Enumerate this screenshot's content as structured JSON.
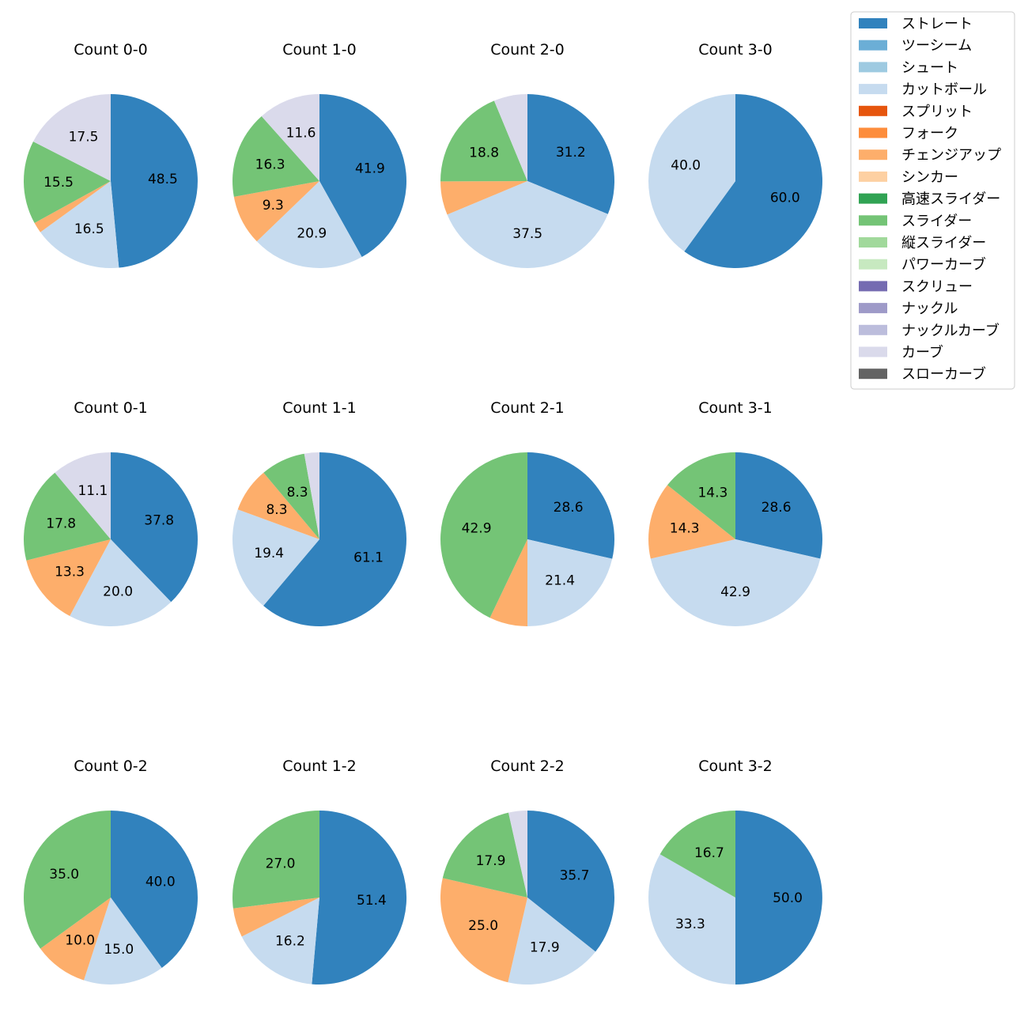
{
  "chart_data": {
    "type": "pie",
    "title": "",
    "legend_position": "top-right",
    "pitch_types": [
      {
        "name": "ストレート",
        "color": "#3182bd"
      },
      {
        "name": "ツーシーム",
        "color": "#6baed6"
      },
      {
        "name": "シュート",
        "color": "#9ecae1"
      },
      {
        "name": "カットボール",
        "color": "#c6dbef"
      },
      {
        "name": "スプリット",
        "color": "#e6550d"
      },
      {
        "name": "フォーク",
        "color": "#fd8d3c"
      },
      {
        "name": "チェンジアップ",
        "color": "#fdae6b"
      },
      {
        "name": "シンカー",
        "color": "#fdd0a2"
      },
      {
        "name": "高速スライダー",
        "color": "#31a354"
      },
      {
        "name": "スライダー",
        "color": "#74c476"
      },
      {
        "name": "縦スライダー",
        "color": "#a1d99b"
      },
      {
        "name": "パワーカーブ",
        "color": "#c7e9c0"
      },
      {
        "name": "スクリュー",
        "color": "#756bb1"
      },
      {
        "name": "ナックル",
        "color": "#9e9ac8"
      },
      {
        "name": "ナックルカーブ",
        "color": "#bcbddc"
      },
      {
        "name": "カーブ",
        "color": "#dadaeb"
      },
      {
        "name": "スローカーブ",
        "color": "#636363"
      }
    ],
    "charts": [
      {
        "title": "Count 0-0",
        "slices": [
          {
            "pitch": "ストレート",
            "value": 48.5,
            "label": "48.5"
          },
          {
            "pitch": "カットボール",
            "value": 16.5,
            "label": "16.5"
          },
          {
            "pitch": "チェンジアップ",
            "value": 2.0,
            "label": ""
          },
          {
            "pitch": "スライダー",
            "value": 15.5,
            "label": "15.5"
          },
          {
            "pitch": "カーブ",
            "value": 17.5,
            "label": "17.5"
          }
        ]
      },
      {
        "title": "Count 1-0",
        "slices": [
          {
            "pitch": "ストレート",
            "value": 41.9,
            "label": "41.9"
          },
          {
            "pitch": "カットボール",
            "value": 20.9,
            "label": "20.9"
          },
          {
            "pitch": "チェンジアップ",
            "value": 9.3,
            "label": "9.3"
          },
          {
            "pitch": "スライダー",
            "value": 16.3,
            "label": "16.3"
          },
          {
            "pitch": "カーブ",
            "value": 11.6,
            "label": "11.6"
          }
        ]
      },
      {
        "title": "Count 2-0",
        "slices": [
          {
            "pitch": "ストレート",
            "value": 31.2,
            "label": "31.2"
          },
          {
            "pitch": "カットボール",
            "value": 37.5,
            "label": "37.5"
          },
          {
            "pitch": "チェンジアップ",
            "value": 6.25,
            "label": ""
          },
          {
            "pitch": "スライダー",
            "value": 18.8,
            "label": "18.8"
          },
          {
            "pitch": "カーブ",
            "value": 6.25,
            "label": ""
          }
        ]
      },
      {
        "title": "Count 3-0",
        "slices": [
          {
            "pitch": "ストレート",
            "value": 60.0,
            "label": "60.0"
          },
          {
            "pitch": "カットボール",
            "value": 40.0,
            "label": "40.0"
          }
        ]
      },
      {
        "title": "Count 0-1",
        "slices": [
          {
            "pitch": "ストレート",
            "value": 37.8,
            "label": "37.8"
          },
          {
            "pitch": "カットボール",
            "value": 20.0,
            "label": "20.0"
          },
          {
            "pitch": "チェンジアップ",
            "value": 13.3,
            "label": "13.3"
          },
          {
            "pitch": "スライダー",
            "value": 17.8,
            "label": "17.8"
          },
          {
            "pitch": "カーブ",
            "value": 11.1,
            "label": "11.1"
          }
        ]
      },
      {
        "title": "Count 1-1",
        "slices": [
          {
            "pitch": "ストレート",
            "value": 61.1,
            "label": "61.1"
          },
          {
            "pitch": "カットボール",
            "value": 19.4,
            "label": "19.4"
          },
          {
            "pitch": "チェンジアップ",
            "value": 8.3,
            "label": "8.3"
          },
          {
            "pitch": "スライダー",
            "value": 8.3,
            "label": "8.3"
          },
          {
            "pitch": "カーブ",
            "value": 2.8,
            "label": ""
          }
        ]
      },
      {
        "title": "Count 2-1",
        "slices": [
          {
            "pitch": "ストレート",
            "value": 28.6,
            "label": "28.6"
          },
          {
            "pitch": "カットボール",
            "value": 21.4,
            "label": "21.4"
          },
          {
            "pitch": "チェンジアップ",
            "value": 7.1,
            "label": ""
          },
          {
            "pitch": "スライダー",
            "value": 42.9,
            "label": "42.9"
          }
        ]
      },
      {
        "title": "Count 3-1",
        "slices": [
          {
            "pitch": "ストレート",
            "value": 28.6,
            "label": "28.6"
          },
          {
            "pitch": "カットボール",
            "value": 42.9,
            "label": "42.9"
          },
          {
            "pitch": "チェンジアップ",
            "value": 14.3,
            "label": "14.3"
          },
          {
            "pitch": "スライダー",
            "value": 14.3,
            "label": "14.3"
          }
        ]
      },
      {
        "title": "Count 0-2",
        "slices": [
          {
            "pitch": "ストレート",
            "value": 40.0,
            "label": "40.0"
          },
          {
            "pitch": "カットボール",
            "value": 15.0,
            "label": "15.0"
          },
          {
            "pitch": "チェンジアップ",
            "value": 10.0,
            "label": "10.0"
          },
          {
            "pitch": "スライダー",
            "value": 35.0,
            "label": "35.0"
          }
        ]
      },
      {
        "title": "Count 1-2",
        "slices": [
          {
            "pitch": "ストレート",
            "value": 51.4,
            "label": "51.4"
          },
          {
            "pitch": "カットボール",
            "value": 16.2,
            "label": "16.2"
          },
          {
            "pitch": "チェンジアップ",
            "value": 5.4,
            "label": ""
          },
          {
            "pitch": "スライダー",
            "value": 27.0,
            "label": "27.0"
          }
        ]
      },
      {
        "title": "Count 2-2",
        "slices": [
          {
            "pitch": "ストレート",
            "value": 35.7,
            "label": "35.7"
          },
          {
            "pitch": "カットボール",
            "value": 17.9,
            "label": "17.9"
          },
          {
            "pitch": "チェンジアップ",
            "value": 25.0,
            "label": "25.0"
          },
          {
            "pitch": "スライダー",
            "value": 17.9,
            "label": "17.9"
          },
          {
            "pitch": "カーブ",
            "value": 3.5,
            "label": ""
          }
        ]
      },
      {
        "title": "Count 3-2",
        "slices": [
          {
            "pitch": "ストレート",
            "value": 50.0,
            "label": "50.0"
          },
          {
            "pitch": "カットボール",
            "value": 33.3,
            "label": "33.3"
          },
          {
            "pitch": "スライダー",
            "value": 16.7,
            "label": "16.7"
          }
        ]
      }
    ]
  }
}
